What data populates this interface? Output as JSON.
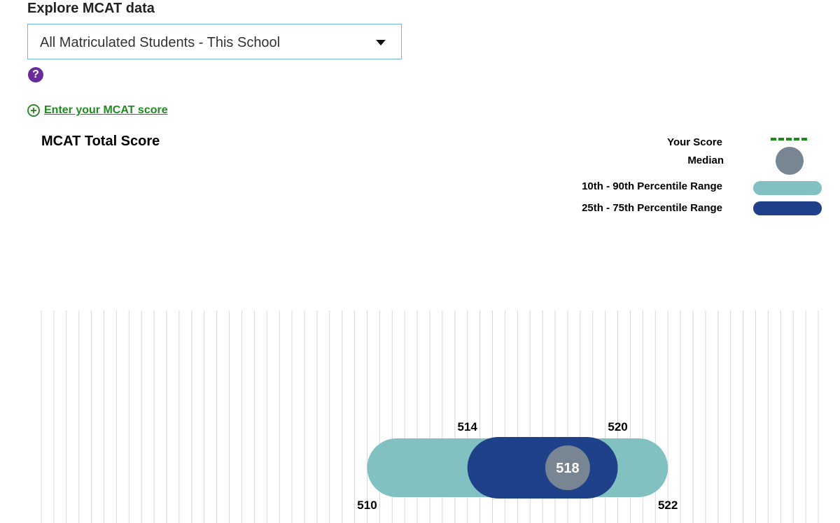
{
  "header": {
    "title": "Explore MCAT data"
  },
  "select": {
    "value": "All Matriculated Students - This School"
  },
  "help": {
    "icon_text": "?"
  },
  "enter_score": {
    "label": "Enter your MCAT score"
  },
  "legend": {
    "your_score": "Your Score",
    "median": "Median",
    "p10_90": "10th - 90th Percentile Range",
    "p25_75": "25th - 75th Percentile Range",
    "colors": {
      "your_score": "#1a8a1a",
      "median": "#788592",
      "p10_90": "#82c1c1",
      "p25_75": "#1f418a"
    }
  },
  "chart_data": {
    "type": "range",
    "title": "MCAT Total Score",
    "grid": true,
    "xlim": [
      497,
      528
    ],
    "p10": 510,
    "p25": 514,
    "median": 518,
    "p75": 520,
    "p90": 522,
    "labels": {
      "p10": "510",
      "p25": "514",
      "median": "518",
      "p75": "520",
      "p90": "522"
    }
  }
}
